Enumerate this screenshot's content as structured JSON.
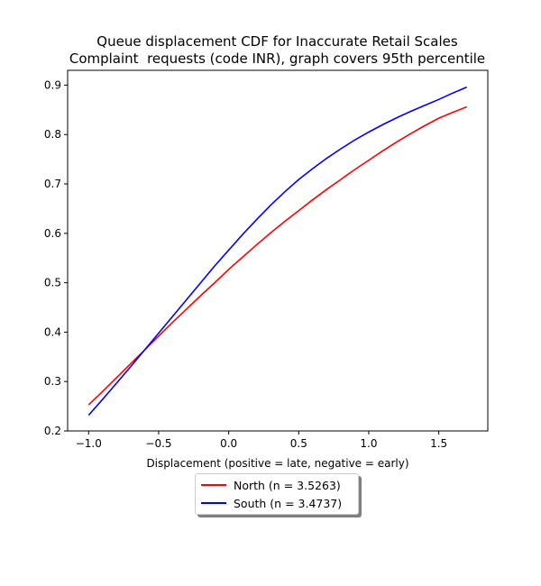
{
  "chart_data": {
    "type": "line",
    "title": "Queue displacement CDF for Inaccurate Retail Scales",
    "subtitle": "Complaint  requests (code INR), graph covers 95th percentile",
    "xlabel": "Displacement (positive = late, negative = early)",
    "ylabel": "",
    "xlim": [
      -1.15,
      1.85
    ],
    "ylim": [
      0.2,
      0.93
    ],
    "xticks": [
      -1.0,
      -0.5,
      0.0,
      0.5,
      1.0,
      1.5
    ],
    "xtick_labels": [
      "−1.0",
      "−0.5",
      "0.0",
      "0.5",
      "1.0",
      "1.5"
    ],
    "yticks": [
      0.2,
      0.3,
      0.4,
      0.5,
      0.6,
      0.7,
      0.8,
      0.9
    ],
    "ytick_labels": [
      "0.2",
      "0.3",
      "0.4",
      "0.5",
      "0.6",
      "0.7",
      "0.8",
      "0.9"
    ],
    "grid": false,
    "legend_position": "below",
    "series": [
      {
        "name": "North (n = 3.5263)",
        "color": "#ff0000",
        "x": [
          -1.0,
          -0.9,
          -0.8,
          -0.7,
          -0.6,
          -0.5,
          -0.4,
          -0.3,
          -0.2,
          -0.1,
          0.0,
          0.1,
          0.2,
          0.3,
          0.4,
          0.5,
          0.6,
          0.7,
          0.8,
          0.9,
          1.0,
          1.1,
          1.2,
          1.3,
          1.4,
          1.5,
          1.6,
          1.7
        ],
        "y": [
          0.253,
          0.28,
          0.308,
          0.336,
          0.364,
          0.392,
          0.42,
          0.447,
          0.474,
          0.5,
          0.527,
          0.552,
          0.577,
          0.601,
          0.624,
          0.646,
          0.668,
          0.689,
          0.709,
          0.729,
          0.748,
          0.767,
          0.785,
          0.802,
          0.818,
          0.833,
          0.845,
          0.856
        ]
      },
      {
        "name": "South (n = 3.4737)",
        "color": "#0000ff",
        "x": [
          -1.0,
          -0.9,
          -0.8,
          -0.7,
          -0.6,
          -0.5,
          -0.4,
          -0.3,
          -0.2,
          -0.1,
          0.0,
          0.1,
          0.2,
          0.3,
          0.4,
          0.5,
          0.6,
          0.7,
          0.8,
          0.9,
          1.0,
          1.1,
          1.2,
          1.3,
          1.4,
          1.5,
          1.6,
          1.7
        ],
        "y": [
          0.232,
          0.264,
          0.297,
          0.33,
          0.364,
          0.398,
          0.432,
          0.466,
          0.5,
          0.534,
          0.566,
          0.598,
          0.628,
          0.657,
          0.684,
          0.709,
          0.731,
          0.752,
          0.771,
          0.789,
          0.805,
          0.82,
          0.834,
          0.847,
          0.859,
          0.871,
          0.884,
          0.896
        ]
      }
    ]
  }
}
